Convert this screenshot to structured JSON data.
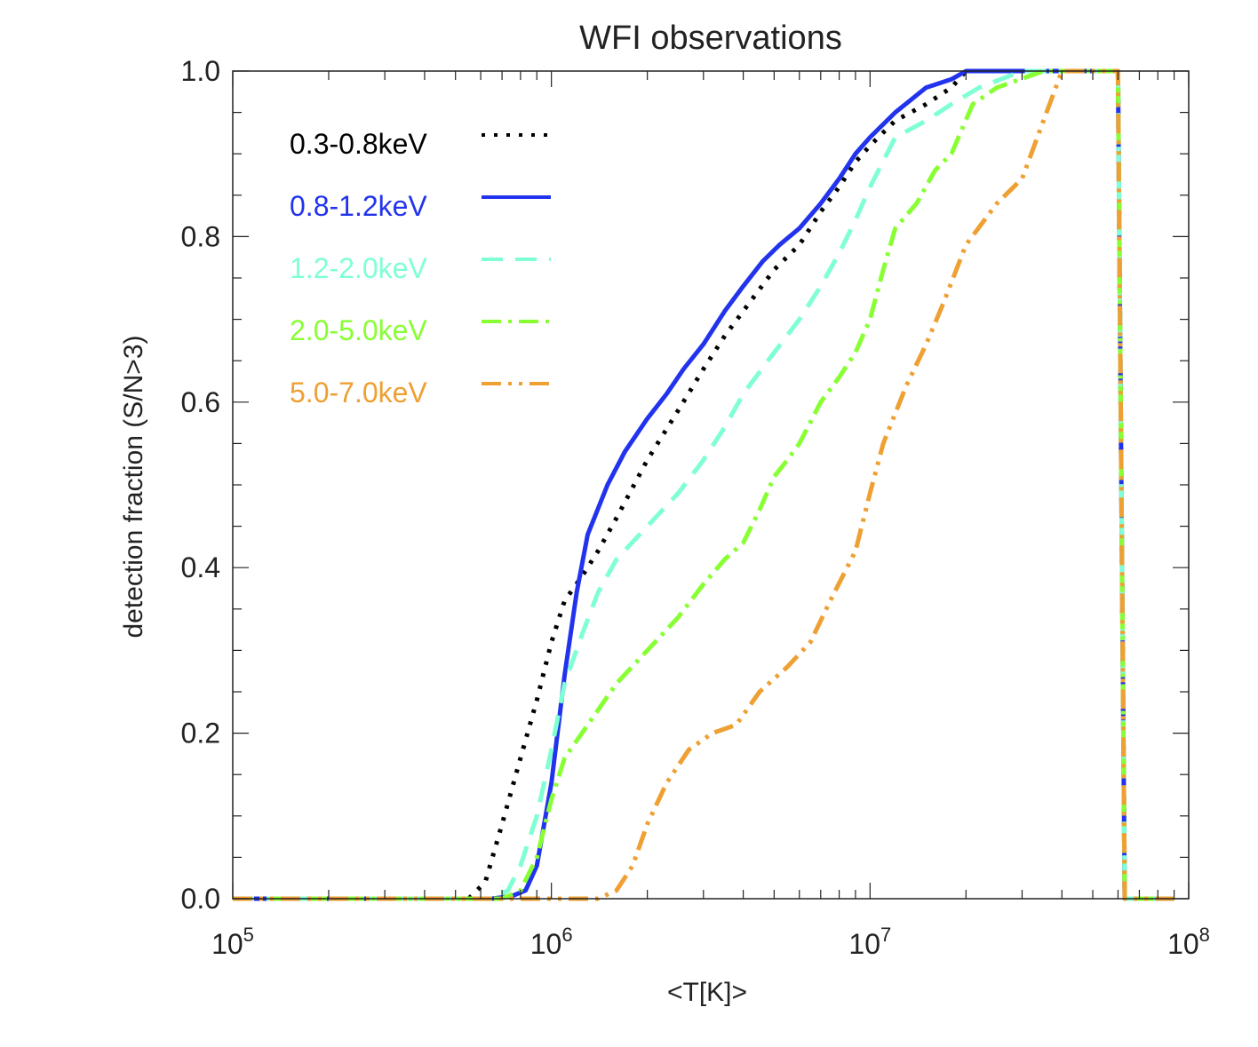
{
  "chart_data": {
    "type": "line",
    "title": "WFI observations",
    "xlabel": "<T[K]>",
    "ylabel": "detection fraction (S/N>3)",
    "xscale": "log",
    "xlim": [
      100000,
      100000000
    ],
    "ylim": [
      0.0,
      1.0
    ],
    "x_ticks": [
      {
        "value": 100000,
        "base": "10",
        "exp": "5"
      },
      {
        "value": 1000000,
        "base": "10",
        "exp": "6"
      },
      {
        "value": 10000000,
        "base": "10",
        "exp": "7"
      },
      {
        "value": 100000000,
        "base": "10",
        "exp": "8"
      }
    ],
    "y_ticks": [
      {
        "value": 0.0,
        "label": "0.0"
      },
      {
        "value": 0.2,
        "label": "0.2"
      },
      {
        "value": 0.4,
        "label": "0.4"
      },
      {
        "value": 0.6,
        "label": "0.6"
      },
      {
        "value": 0.8,
        "label": "0.8"
      },
      {
        "value": 1.0,
        "label": "1.0"
      }
    ],
    "legend_position": "top-left",
    "series": [
      {
        "name": "0.3-0.8keV",
        "color": "#000000",
        "dash": "dotted",
        "points": [
          [
            100000.0,
            0
          ],
          [
            550000.0,
            0
          ],
          [
            620000.0,
            0.02
          ],
          [
            700000.0,
            0.09
          ],
          [
            800000.0,
            0.17
          ],
          [
            900000.0,
            0.24
          ],
          [
            1000000.0,
            0.31
          ],
          [
            1100000.0,
            0.36
          ],
          [
            1250000.0,
            0.39
          ],
          [
            1400000.0,
            0.42
          ],
          [
            1600000.0,
            0.46
          ],
          [
            2000000.0,
            0.53
          ],
          [
            2500000.0,
            0.59
          ],
          [
            3000000.0,
            0.64
          ],
          [
            3500000.0,
            0.68
          ],
          [
            4000000.0,
            0.71
          ],
          [
            5000000.0,
            0.76
          ],
          [
            6000000.0,
            0.79
          ],
          [
            7000000.0,
            0.83
          ],
          [
            8000000.0,
            0.86
          ],
          [
            9000000.0,
            0.89
          ],
          [
            10000000.0,
            0.91
          ],
          [
            12000000.0,
            0.94
          ],
          [
            15000000.0,
            0.96
          ],
          [
            18000000.0,
            0.98
          ],
          [
            20000000.0,
            1.0
          ],
          [
            60000000.0,
            1.0
          ],
          [
            63000000.0,
            0
          ],
          [
            90000000.0,
            0
          ]
        ]
      },
      {
        "name": "0.8-1.2keV",
        "color": "#2233ee",
        "dash": "solid",
        "points": [
          [
            100000.0,
            0
          ],
          [
            650000.0,
            0
          ],
          [
            750000.0,
            0.003
          ],
          [
            830000.0,
            0.01
          ],
          [
            900000.0,
            0.04
          ],
          [
            1000000.0,
            0.14
          ],
          [
            1100000.0,
            0.27
          ],
          [
            1200000.0,
            0.37
          ],
          [
            1300000.0,
            0.44
          ],
          [
            1500000.0,
            0.5
          ],
          [
            1700000.0,
            0.54
          ],
          [
            2000000.0,
            0.58
          ],
          [
            2300000.0,
            0.61
          ],
          [
            2600000.0,
            0.64
          ],
          [
            3000000.0,
            0.67
          ],
          [
            3500000.0,
            0.71
          ],
          [
            4000000.0,
            0.74
          ],
          [
            4600000.0,
            0.77
          ],
          [
            5200000.0,
            0.79
          ],
          [
            6000000.0,
            0.81
          ],
          [
            7000000.0,
            0.84
          ],
          [
            8000000.0,
            0.87
          ],
          [
            9000000.0,
            0.9
          ],
          [
            10000000.0,
            0.92
          ],
          [
            12000000.0,
            0.95
          ],
          [
            15000000.0,
            0.98
          ],
          [
            18000000.0,
            0.99
          ],
          [
            20000000.0,
            1.0
          ],
          [
            60000000.0,
            1.0
          ],
          [
            63000000.0,
            0
          ],
          [
            90000000.0,
            0
          ]
        ]
      },
      {
        "name": "1.2-2.0keV",
        "color": "#7fffd4",
        "dash": "dashed",
        "points": [
          [
            100000.0,
            0
          ],
          [
            650000.0,
            0
          ],
          [
            730000.0,
            0.01
          ],
          [
            800000.0,
            0.04
          ],
          [
            900000.0,
            0.1
          ],
          [
            1000000.0,
            0.18
          ],
          [
            1100000.0,
            0.26
          ],
          [
            1250000.0,
            0.32
          ],
          [
            1400000.0,
            0.37
          ],
          [
            1600000.0,
            0.41
          ],
          [
            2000000.0,
            0.45
          ],
          [
            2500000.0,
            0.49
          ],
          [
            3000000.0,
            0.53
          ],
          [
            3500000.0,
            0.57
          ],
          [
            4000000.0,
            0.61
          ],
          [
            5000000.0,
            0.66
          ],
          [
            6000000.0,
            0.7
          ],
          [
            7000000.0,
            0.74
          ],
          [
            8000000.0,
            0.78
          ],
          [
            9000000.0,
            0.82
          ],
          [
            10000000.0,
            0.86
          ],
          [
            12000000.0,
            0.92
          ],
          [
            15000000.0,
            0.94
          ],
          [
            18000000.0,
            0.96
          ],
          [
            22000000.0,
            0.98
          ],
          [
            30000000.0,
            1.0
          ],
          [
            60000000.0,
            1.0
          ],
          [
            63000000.0,
            0
          ],
          [
            90000000.0,
            0
          ]
        ]
      },
      {
        "name": "2.0-5.0keV",
        "color": "#88ff33",
        "dash": "dashdot",
        "points": [
          [
            100000.0,
            0
          ],
          [
            700000.0,
            0
          ],
          [
            800000.0,
            0.01
          ],
          [
            900000.0,
            0.05
          ],
          [
            1000000.0,
            0.12
          ],
          [
            1100000.0,
            0.17
          ],
          [
            1300000.0,
            0.21
          ],
          [
            1600000.0,
            0.26
          ],
          [
            2000000.0,
            0.3
          ],
          [
            2500000.0,
            0.34
          ],
          [
            3000000.0,
            0.38
          ],
          [
            3500000.0,
            0.41
          ],
          [
            4000000.0,
            0.43
          ],
          [
            4500000.0,
            0.47
          ],
          [
            5000000.0,
            0.51
          ],
          [
            5500000.0,
            0.53
          ],
          [
            6000000.0,
            0.55
          ],
          [
            7000000.0,
            0.6
          ],
          [
            8000000.0,
            0.63
          ],
          [
            9000000.0,
            0.66
          ],
          [
            10000000.0,
            0.7
          ],
          [
            11000000.0,
            0.76
          ],
          [
            12000000.0,
            0.81
          ],
          [
            14000000.0,
            0.84
          ],
          [
            16000000.0,
            0.88
          ],
          [
            18000000.0,
            0.9
          ],
          [
            21000000.0,
            0.96
          ],
          [
            25000000.0,
            0.98
          ],
          [
            35000000.0,
            1.0
          ],
          [
            60000000.0,
            1.0
          ],
          [
            63000000.0,
            0
          ],
          [
            90000000.0,
            0
          ]
        ]
      },
      {
        "name": "5.0-7.0keV",
        "color": "#eea033",
        "dash": "dashdotdot",
        "points": [
          [
            100000.0,
            0
          ],
          [
            1400000.0,
            0
          ],
          [
            1600000.0,
            0.01
          ],
          [
            1800000.0,
            0.04
          ],
          [
            2000000.0,
            0.09
          ],
          [
            2300000.0,
            0.14
          ],
          [
            2700000.0,
            0.18
          ],
          [
            3200000.0,
            0.2
          ],
          [
            3800000.0,
            0.21
          ],
          [
            4500000.0,
            0.25
          ],
          [
            5500000.0,
            0.28
          ],
          [
            6500000.0,
            0.31
          ],
          [
            7500000.0,
            0.36
          ],
          [
            9000000.0,
            0.42
          ],
          [
            10000000.0,
            0.49
          ],
          [
            11000000.0,
            0.55
          ],
          [
            13000000.0,
            0.62
          ],
          [
            15000000.0,
            0.67
          ],
          [
            17000000.0,
            0.72
          ],
          [
            20000000.0,
            0.79
          ],
          [
            25000000.0,
            0.84
          ],
          [
            30000000.0,
            0.87
          ],
          [
            35000000.0,
            0.94
          ],
          [
            40000000.0,
            1.0
          ],
          [
            60000000.0,
            1.0
          ],
          [
            63000000.0,
            0
          ],
          [
            90000000.0,
            0
          ]
        ]
      }
    ]
  }
}
